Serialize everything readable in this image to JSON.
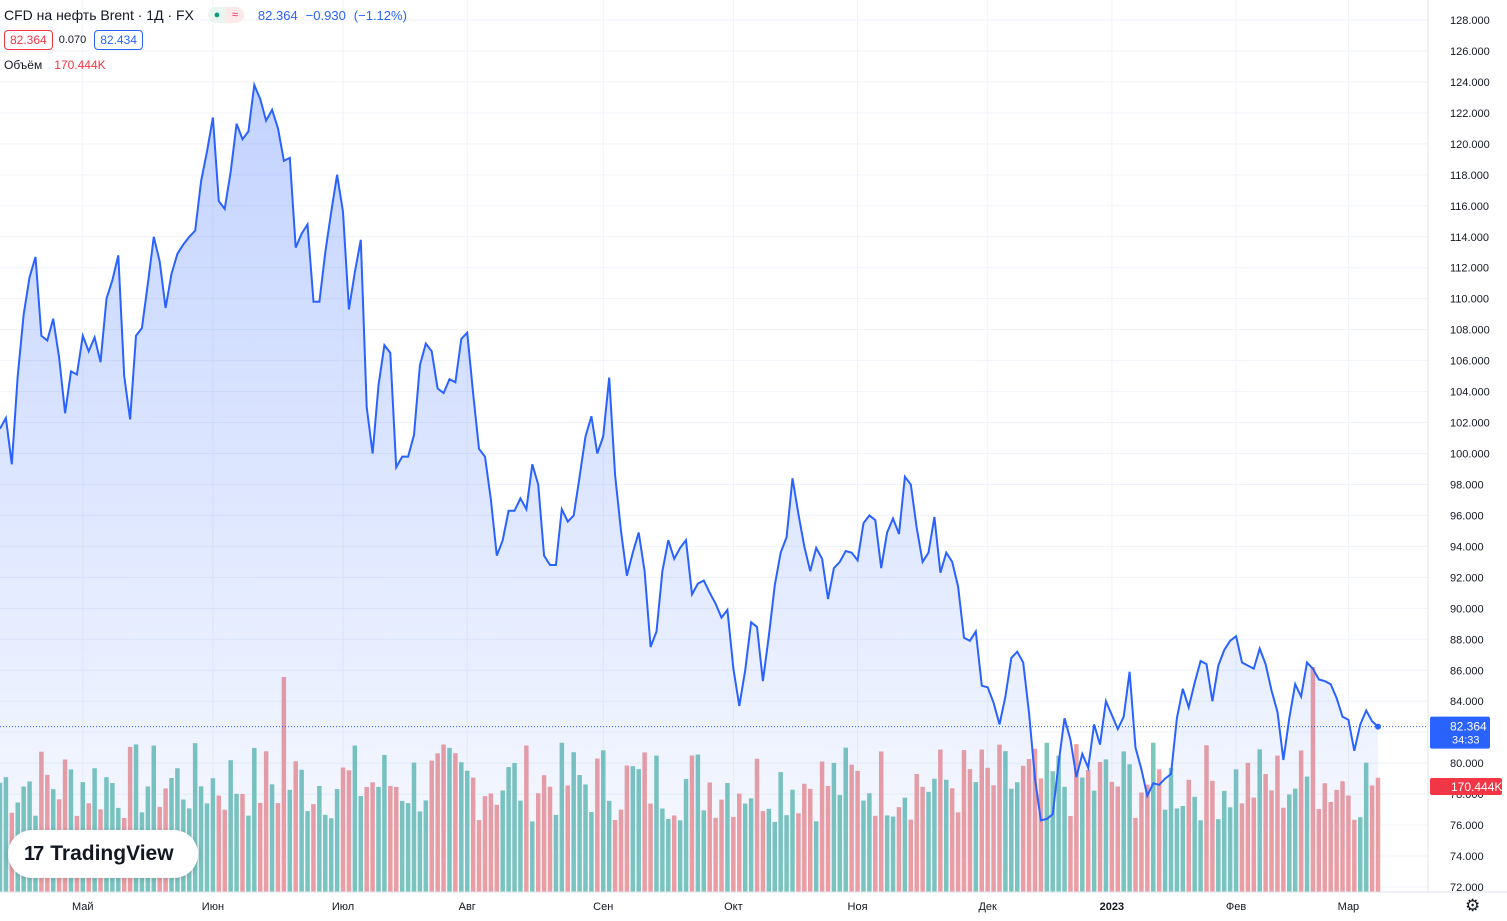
{
  "legend": {
    "title": "CFD на нефть Brent · 1Д · FX",
    "last": "82.364",
    "change": "−0.930",
    "change_pct": "(−1.12%)",
    "bid": "82.364",
    "spread": "0.070",
    "ask": "82.434",
    "volume_label": "Объём",
    "volume_value": "170.444K"
  },
  "brand": {
    "name": "TradingView",
    "mark": "17"
  },
  "price_tag": {
    "price": "82.364",
    "countdown": "34:33",
    "volume": "170.444K"
  },
  "colors": {
    "line": "#2962ff",
    "vol_up": "#7dc7bd",
    "vol_down": "#f0a0a0",
    "price_tag": "#2962ff",
    "vol_tag": "#f23645"
  },
  "chart_data": {
    "type": "line",
    "y_ticks": [
      "128.000",
      "126.000",
      "124.000",
      "122.000",
      "120.000",
      "118.000",
      "116.000",
      "114.000",
      "112.000",
      "110.000",
      "108.000",
      "106.000",
      "104.000",
      "102.000",
      "100.000",
      "98.000",
      "96.000",
      "94.000",
      "92.000",
      "90.000",
      "88.000",
      "86.000",
      "84.000",
      "82.000",
      "80.000",
      "78.000",
      "76.000",
      "74.000",
      "72.000"
    ],
    "x_ticks": [
      {
        "label": "Май",
        "bar": 14
      },
      {
        "label": "Июн",
        "bar": 36
      },
      {
        "label": "Июл",
        "bar": 58
      },
      {
        "label": "Авг",
        "bar": 79
      },
      {
        "label": "Сен",
        "bar": 102
      },
      {
        "label": "Окт",
        "bar": 124
      },
      {
        "label": "Ноя",
        "bar": 145
      },
      {
        "label": "Дек",
        "bar": 167
      },
      {
        "label": "2023",
        "bar": 188
      },
      {
        "label": "Фев",
        "bar": 209
      },
      {
        "label": "Мар",
        "bar": 228
      }
    ],
    "ylim": [
      72,
      128
    ],
    "close": [
      101.6,
      102.3,
      99.3,
      105,
      109,
      111.4,
      112.7,
      107.6,
      107.3,
      108.7,
      106.2,
      102.6,
      105.3,
      105.1,
      107.6,
      106.6,
      107.5,
      105.9,
      110.0,
      111.2,
      112.8,
      105.0,
      102.2,
      107.6,
      108.1,
      111.0,
      114.0,
      112.4,
      109.4,
      111.6,
      112.9,
      113.5,
      114.0,
      114.4,
      117.6,
      119.5,
      121.7,
      116.3,
      115.8,
      118.2,
      121.3,
      120.3,
      120.8,
      123.8,
      122.9,
      121.5,
      122.2,
      121.0,
      118.9,
      119.1,
      113.3,
      114.2,
      114.8,
      109.8,
      109.8,
      113.0,
      115.6,
      118.0,
      115.6,
      109.3,
      111.7,
      113.8,
      103.0,
      100.0,
      104.4,
      107.0,
      106.5,
      99.1,
      99.8,
      99.8,
      101.2,
      105.7,
      107.1,
      106.6,
      104.2,
      103.9,
      104.8,
      104.6,
      107.4,
      107.8,
      103.9,
      100.3,
      99.8,
      97.0,
      93.4,
      94.4,
      96.3,
      96.3,
      97.1,
      96.4,
      99.3,
      98.0,
      93.4,
      92.8,
      92.8,
      96.4,
      95.6,
      96.0,
      98.5,
      101.1,
      102.4,
      100.0,
      101.1,
      104.9,
      98.6,
      95.0,
      92.1,
      93.6,
      94.9,
      92.4,
      87.5,
      88.5,
      92.4,
      94.4,
      93.2,
      93.9,
      94.4,
      90.9,
      91.6,
      91.8,
      91.0,
      90.3,
      89.4,
      89.9,
      86.1,
      83.7,
      86.0,
      89.1,
      88.8,
      85.3,
      88.2,
      91.5,
      93.6,
      94.6,
      98.4,
      96.1,
      94.0,
      92.4,
      93.9,
      93.2,
      90.6,
      92.6,
      93.0,
      93.7,
      93.6,
      93.1,
      95.5,
      96.0,
      95.7,
      92.6,
      94.9,
      95.8,
      94.8,
      98.5,
      98.0,
      95.2,
      93.0,
      93.6,
      95.9,
      92.3,
      93.6,
      93.0,
      91.4,
      88.1,
      87.9,
      88.5,
      85.0,
      84.9,
      83.9,
      82.5,
      84.3,
      86.8,
      87.2,
      86.5,
      83.2,
      79.0,
      76.3,
      76.4,
      76.7,
      80.0,
      82.9,
      81.5,
      79.1,
      80.6,
      79.7,
      82.5,
      81.2,
      84.0,
      83.1,
      82.2,
      83.0,
      85.9,
      81.0,
      79.6,
      77.9,
      78.7,
      78.6,
      79.0,
      79.3,
      82.9,
      84.8,
      83.6,
      85.2,
      86.6,
      86.4,
      84.0,
      86.3,
      87.3,
      87.9,
      88.2,
      86.5,
      86.3,
      86.1,
      87.4,
      86.4,
      84.7,
      83.3,
      80.2,
      82.9,
      85.1,
      84.3,
      86.5,
      86.1,
      85.4,
      85.3,
      85.1,
      84.2,
      83.0,
      82.8,
      80.8,
      82.5,
      83.4,
      82.7,
      82.36
    ],
    "volume_bars": "per-day volume (colored green = up day, red = down day)"
  }
}
